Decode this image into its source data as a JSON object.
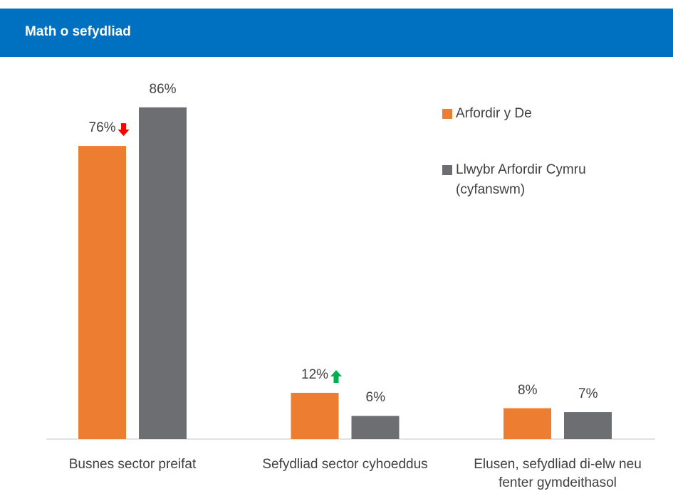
{
  "header": {
    "title": "Math o sefydliad"
  },
  "chart_data": {
    "type": "bar",
    "categories": [
      "Busnes sector preifat",
      "Sefydliad sector cyhoeddus",
      "Elusen, sefydliad di-elw neu fenter gymdeithasol"
    ],
    "series": [
      {
        "name": "Arfordir y De",
        "color": "#ed7d31",
        "values": [
          76,
          12,
          8
        ],
        "value_labels": [
          "76%",
          "12%",
          "8%"
        ]
      },
      {
        "name": "Llwybr Arfordir Cymru (cyfanswm)",
        "color": "#6d6e71",
        "values": [
          86,
          6,
          7
        ],
        "value_labels": [
          "86%",
          "6%",
          "7%"
        ]
      }
    ],
    "arrows": [
      {
        "series": 0,
        "index": 0,
        "direction": "down",
        "color": "#ff0000"
      },
      {
        "series": 0,
        "index": 1,
        "direction": "up",
        "color": "#00b050"
      }
    ],
    "legend": "top-right"
  }
}
